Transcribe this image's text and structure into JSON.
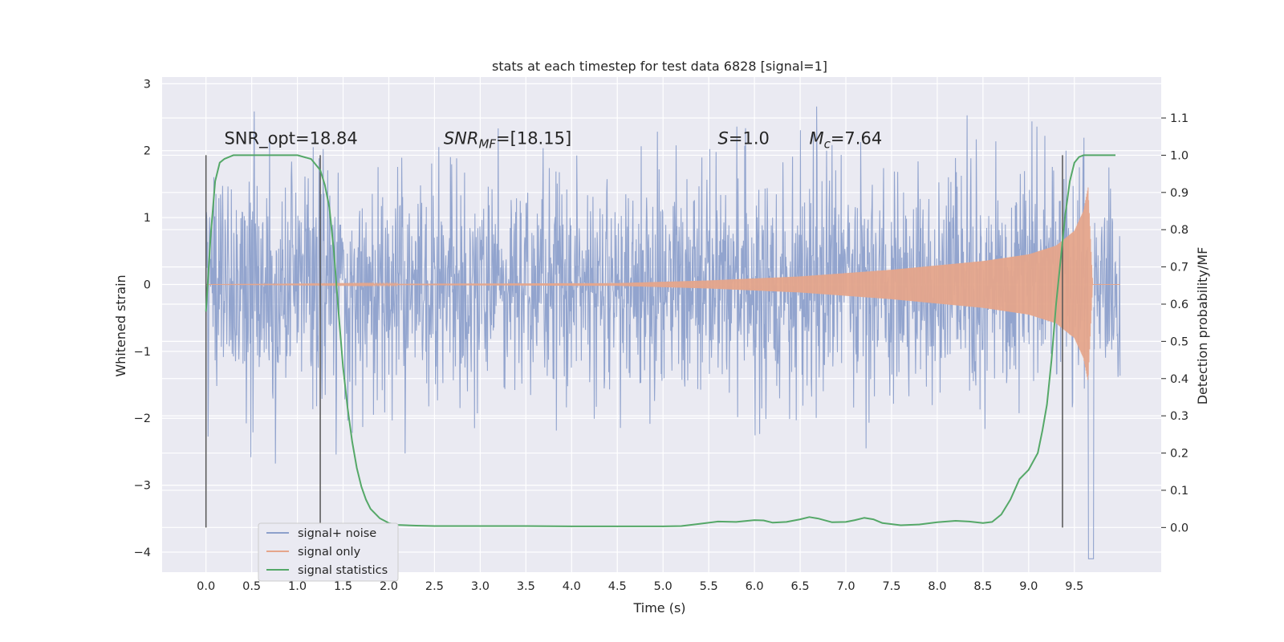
{
  "chart_data": {
    "type": "line",
    "title": "stats at each timestep for test data 6828 [signal=1]",
    "xlabel": "Time (s)",
    "ylabel": "Whitened strain",
    "y2label": "Detection probability/MF",
    "xlim": [
      -0.48,
      10.45
    ],
    "ylim": [
      -4.3,
      3.1
    ],
    "y2lim": [
      -0.12,
      1.21
    ],
    "xticks": [
      0.0,
      0.5,
      1.0,
      1.5,
      2.0,
      2.5,
      3.0,
      3.5,
      4.0,
      4.5,
      5.0,
      5.5,
      6.0,
      6.5,
      7.0,
      7.5,
      8.0,
      8.5,
      9.0,
      9.5
    ],
    "xtick_labels": [
      "0.0",
      "0.5",
      "1.0",
      "1.5",
      "2.0",
      "2.5",
      "3.0",
      "3.5",
      "4.0",
      "4.5",
      "5.0",
      "5.5",
      "6.0",
      "6.5",
      "7.0",
      "7.5",
      "8.0",
      "8.5",
      "9.0",
      "9.5"
    ],
    "yticks": [
      -4,
      -3,
      -2,
      -1,
      0,
      1,
      2,
      3
    ],
    "ytick_labels": [
      "−4",
      "−3",
      "−2",
      "−1",
      "0",
      "1",
      "2",
      "3"
    ],
    "y2ticks": [
      0.0,
      0.1,
      0.2,
      0.3,
      0.4,
      0.5,
      0.6,
      0.7,
      0.8,
      0.9,
      1.0,
      1.1
    ],
    "y2tick_labels": [
      "0.0",
      "0.1",
      "0.2",
      "0.3",
      "0.4",
      "0.5",
      "0.6",
      "0.7",
      "0.8",
      "0.9",
      "1.0",
      "1.1"
    ],
    "grid": true,
    "legend_position": "lower-left",
    "series": [
      {
        "name": "signal+ noise",
        "color": "#8da0cb",
        "axis": "left",
        "kind": "noise",
        "x_range": [
          0.0,
          10.0
        ],
        "approx_envelope": {
          "typical_max": 1.8,
          "typical_min": -1.8,
          "peak_max": 2.7,
          "peak_min": -4.1
        }
      },
      {
        "name": "signal only",
        "color": "#e5a58b",
        "axis": "left",
        "kind": "chirp",
        "x_range": [
          0.0,
          10.0
        ],
        "envelope": {
          "x": [
            0.0,
            4.5,
            5.5,
            6.5,
            7.5,
            8.5,
            9.0,
            9.3,
            9.5,
            9.6,
            9.65,
            9.7
          ],
          "amp": [
            0.0,
            0.02,
            0.06,
            0.12,
            0.22,
            0.35,
            0.45,
            0.58,
            0.8,
            1.1,
            1.45,
            0.0
          ]
        }
      },
      {
        "name": "signal statistics",
        "color": "#55a868",
        "axis": "right",
        "x": [
          0.0,
          0.05,
          0.1,
          0.15,
          0.2,
          0.3,
          0.5,
          0.8,
          1.0,
          1.15,
          1.25,
          1.3,
          1.35,
          1.4,
          1.45,
          1.5,
          1.55,
          1.6,
          1.65,
          1.7,
          1.75,
          1.8,
          1.9,
          2.0,
          2.1,
          2.3,
          2.5,
          3.0,
          3.5,
          4.0,
          4.5,
          5.0,
          5.2,
          5.4,
          5.6,
          5.8,
          6.0,
          6.1,
          6.2,
          6.35,
          6.5,
          6.6,
          6.7,
          6.85,
          7.0,
          7.1,
          7.2,
          7.3,
          7.4,
          7.6,
          7.8,
          8.0,
          8.2,
          8.35,
          8.5,
          8.6,
          8.7,
          8.8,
          8.9,
          9.0,
          9.1,
          9.15,
          9.2,
          9.25,
          9.3,
          9.35,
          9.4,
          9.45,
          9.5,
          9.55,
          9.6,
          9.7,
          9.8,
          9.95
        ],
        "values": [
          0.58,
          0.78,
          0.93,
          0.98,
          0.99,
          1.0,
          1.0,
          1.0,
          1.0,
          0.99,
          0.96,
          0.92,
          0.86,
          0.74,
          0.58,
          0.43,
          0.32,
          0.23,
          0.16,
          0.11,
          0.075,
          0.05,
          0.025,
          0.012,
          0.007,
          0.005,
          0.004,
          0.004,
          0.004,
          0.003,
          0.003,
          0.003,
          0.004,
          0.01,
          0.016,
          0.015,
          0.02,
          0.019,
          0.013,
          0.015,
          0.022,
          0.028,
          0.024,
          0.014,
          0.015,
          0.02,
          0.026,
          0.022,
          0.012,
          0.006,
          0.008,
          0.014,
          0.018,
          0.016,
          0.012,
          0.015,
          0.035,
          0.075,
          0.13,
          0.155,
          0.2,
          0.26,
          0.33,
          0.45,
          0.6,
          0.72,
          0.84,
          0.93,
          0.98,
          0.995,
          1.0,
          1.0,
          1.0,
          1.0
        ]
      }
    ],
    "vlines": [
      {
        "x": 0.0,
        "y2_from": 0.0,
        "y2_to": 1.0
      },
      {
        "x": 1.25,
        "y2_from": 0.0,
        "y2_to": 1.0
      },
      {
        "x": 9.37,
        "y2_from": 0.0,
        "y2_to": 1.0
      }
    ],
    "annotations": [
      {
        "x": 0.2,
        "y": 2.1,
        "text": "SNR_opt=18.84"
      },
      {
        "x": 2.6,
        "y": 2.1,
        "text_parts": [
          {
            "t": "SNR",
            "i": true
          },
          {
            "t": "MF",
            "i": true,
            "sub": true
          },
          {
            "t": "=[18.15]"
          }
        ]
      },
      {
        "x": 5.6,
        "y": 2.1,
        "text_parts": [
          {
            "t": "S",
            "i": true
          },
          {
            "t": "=1.0"
          }
        ]
      },
      {
        "x": 6.6,
        "y": 2.1,
        "text_parts": [
          {
            "t": "M",
            "i": true
          },
          {
            "t": "c",
            "i": true,
            "sub": true
          },
          {
            "t": "=7.64"
          }
        ]
      }
    ]
  }
}
